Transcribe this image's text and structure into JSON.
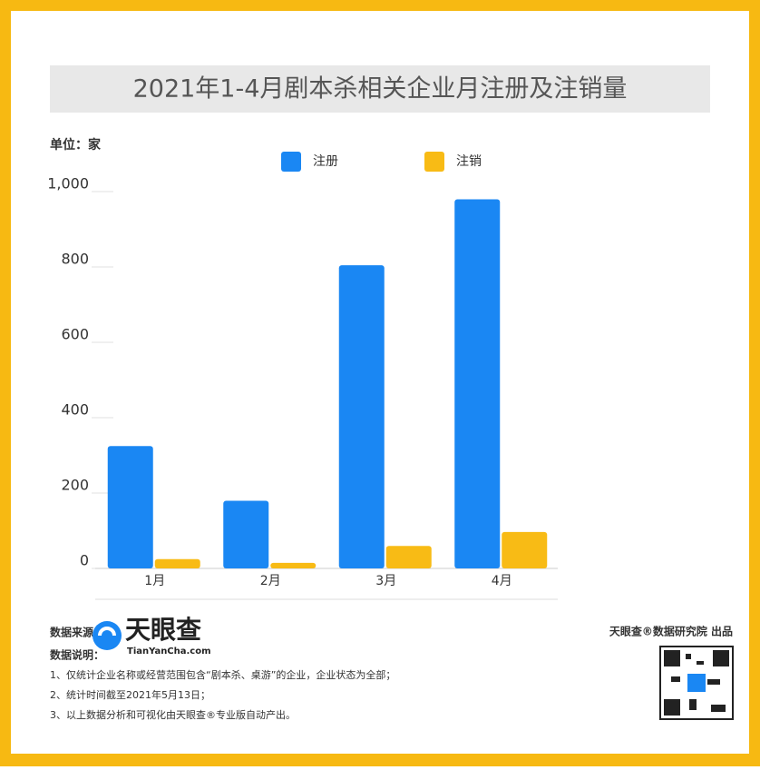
{
  "chart_data": {
    "type": "bar",
    "title": "2021年1-4月剧本杀相关企业月注册及注销量",
    "y_unit": "单位：家",
    "categories": [
      "1月",
      "2月",
      "3月",
      "4月"
    ],
    "series": [
      {
        "name": "注册",
        "color": "#1a87f3",
        "values": [
          315,
          170,
          795,
          970
        ]
      },
      {
        "name": "注销",
        "color": "#f8bb15",
        "values": [
          15,
          5,
          50,
          87
        ]
      }
    ],
    "ylim": [
      0,
      1000
    ],
    "yticks": [
      0,
      200,
      400,
      600,
      800,
      {
        "value": 1000,
        "label": "1,000"
      }
    ]
  },
  "footer": {
    "source_label": "数据来源：",
    "logo_text": "天眼查",
    "logo_url": "TianYanCha.com",
    "notes_label": "数据说明：",
    "notes": [
      "1、仅统计企业名称或经营范围包含“剧本杀、桌游”的企业，企业状态为全部；",
      "2、统计时间截至2021年5月13日；",
      "3、以上数据分析和可视化由天眼查®专业版自动产出。"
    ],
    "credit": "天眼查®数据研究院 出品"
  }
}
